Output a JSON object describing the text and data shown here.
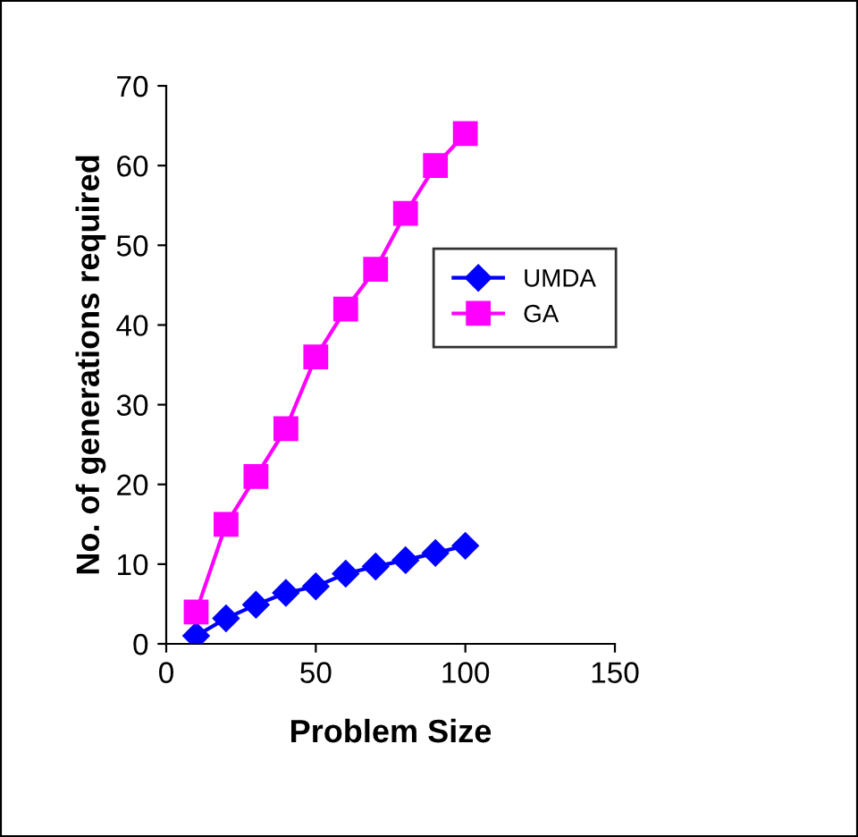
{
  "chart_data": {
    "type": "line",
    "xlabel": "Problem Size",
    "ylabel": "No. of generations required",
    "x": [
      10,
      20,
      30,
      40,
      50,
      60,
      70,
      80,
      90,
      100
    ],
    "series": [
      {
        "name": "UMDA",
        "color": "#0000ff",
        "marker": "diamond",
        "values": [
          1,
          3.2,
          4.9,
          6.4,
          7.2,
          8.8,
          9.7,
          10.5,
          11.4,
          12.3
        ]
      },
      {
        "name": "GA",
        "color": "#ff00ff",
        "marker": "square",
        "values": [
          4,
          15,
          21,
          27,
          36,
          42,
          47,
          54,
          60,
          64
        ]
      }
    ],
    "xlim": [
      0,
      150
    ],
    "xticks": [
      0,
      50,
      100,
      150
    ],
    "ylim": [
      0,
      70
    ],
    "yticks": [
      0,
      10,
      20,
      30,
      40,
      50,
      60,
      70
    ],
    "grid": false,
    "legend": "right",
    "line_style": "solid"
  }
}
